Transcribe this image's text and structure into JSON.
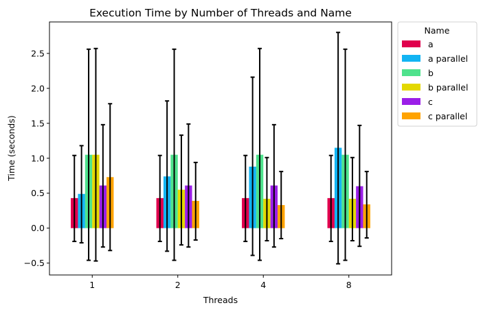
{
  "chart_data": {
    "type": "bar",
    "title": "Execution Time by Number of Threads and Name",
    "xlabel": "Threads",
    "ylabel": "Time (seconds)",
    "categories": [
      "1",
      "2",
      "4",
      "8"
    ],
    "ylim": [
      -0.67,
      2.95
    ],
    "yticks": [
      -0.5,
      0.0,
      0.5,
      1.0,
      1.5,
      2.0,
      2.5
    ],
    "ytick_labels": [
      "−0.5",
      "0.0",
      "0.5",
      "1.0",
      "1.5",
      "2.0",
      "2.5"
    ],
    "grid": false,
    "legend": {
      "title": "Name",
      "placement": "outside-upper-right"
    },
    "error_bars": true,
    "series": [
      {
        "name": "a",
        "color": "#e0004d",
        "values": [
          0.43,
          0.43,
          0.43,
          0.43
        ],
        "lower": [
          -0.19,
          -0.19,
          -0.19,
          -0.19
        ],
        "upper": [
          1.04,
          1.04,
          1.04,
          1.04
        ]
      },
      {
        "name": "a parallel",
        "color": "#12b4f3",
        "values": [
          0.49,
          0.74,
          0.88,
          1.15
        ],
        "lower": [
          -0.21,
          -0.33,
          -0.39,
          -0.51
        ],
        "upper": [
          1.18,
          1.82,
          2.16,
          2.8
        ]
      },
      {
        "name": "b",
        "color": "#4ee28c",
        "values": [
          1.05,
          1.05,
          1.05,
          1.05
        ],
        "lower": [
          -0.46,
          -0.46,
          -0.46,
          -0.46
        ],
        "upper": [
          2.56,
          2.56,
          2.57,
          2.56
        ]
      },
      {
        "name": "b parallel",
        "color": "#e3d800",
        "values": [
          1.05,
          0.55,
          0.42,
          0.42
        ],
        "lower": [
          -0.47,
          -0.24,
          -0.18,
          -0.18
        ],
        "upper": [
          2.57,
          1.33,
          1.01,
          1.01
        ]
      },
      {
        "name": "c",
        "color": "#9b1ee8",
        "values": [
          0.61,
          0.61,
          0.61,
          0.6
        ],
        "lower": [
          -0.27,
          -0.27,
          -0.27,
          -0.26
        ],
        "upper": [
          1.48,
          1.49,
          1.48,
          1.47
        ]
      },
      {
        "name": "c parallel",
        "color": "#ffa300",
        "values": [
          0.73,
          0.39,
          0.33,
          0.34
        ],
        "lower": [
          -0.32,
          -0.17,
          -0.15,
          -0.14
        ],
        "upper": [
          1.78,
          0.94,
          0.81,
          0.81
        ]
      }
    ]
  }
}
